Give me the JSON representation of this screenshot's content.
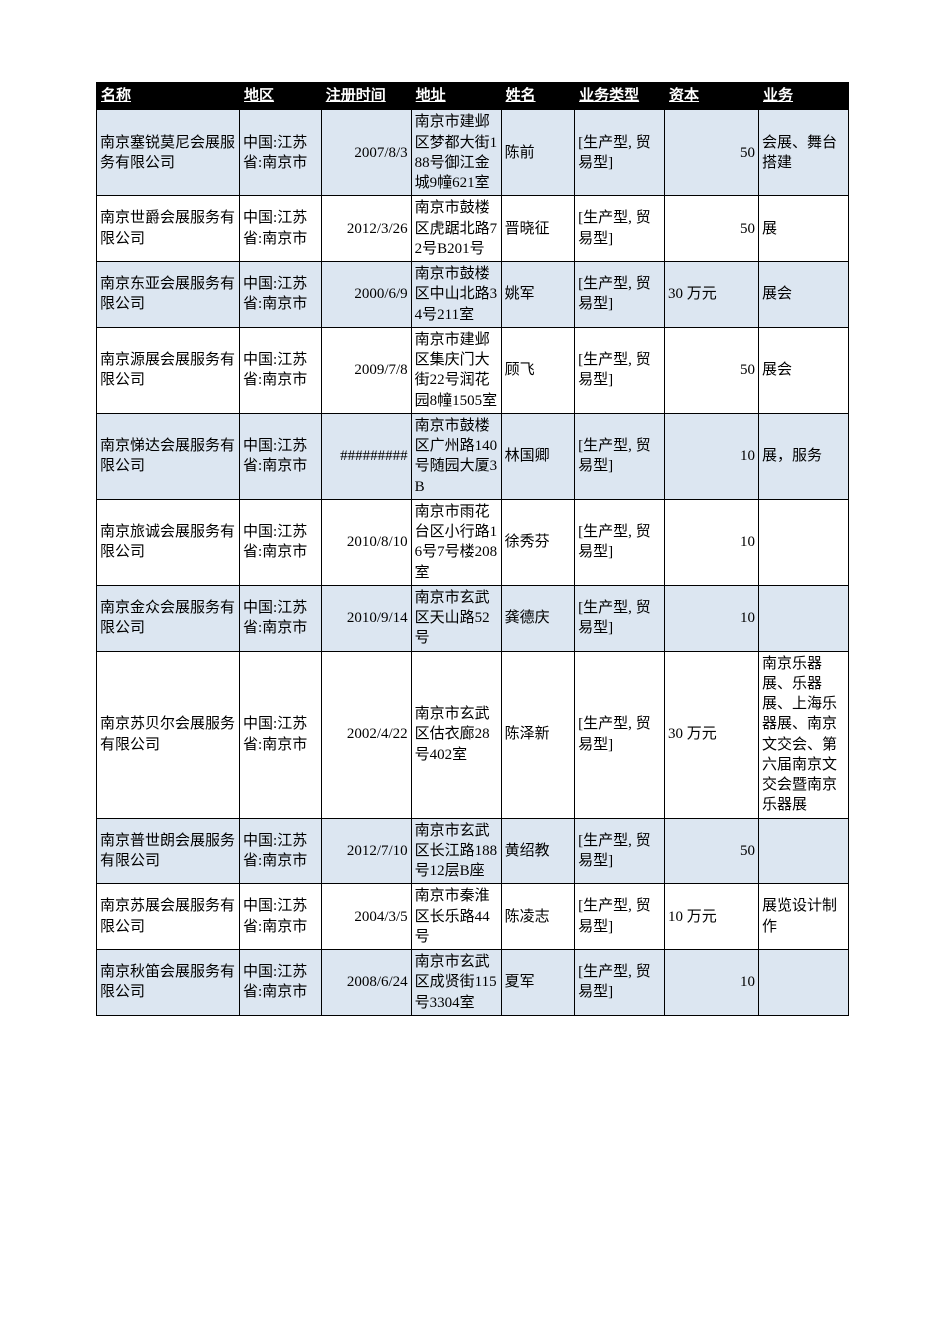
{
  "table": {
    "header_bg": "#000000",
    "header_fg": "#ffffff",
    "row_odd_bg": "#dce6f1",
    "row_even_bg": "#ffffff",
    "border_color": "#000000",
    "columns": [
      {
        "key": "name",
        "label": "名称"
      },
      {
        "key": "region",
        "label": "地区"
      },
      {
        "key": "date",
        "label": "注册时间"
      },
      {
        "key": "addr",
        "label": "地址"
      },
      {
        "key": "person",
        "label": "姓名"
      },
      {
        "key": "biztype",
        "label": "业务类型"
      },
      {
        "key": "capital",
        "label": "资本"
      },
      {
        "key": "biz",
        "label": "业务"
      }
    ],
    "rows": [
      {
        "name": "南京塞锐莫尼会展服务有限公司",
        "region": "中国:江苏省:南京市",
        "date": "2007/8/3",
        "addr": "南京市建邺区梦都大街188号御江金城9幢621室",
        "person": "陈前",
        "biztype": "[生产型, 贸易型]",
        "capital": "50",
        "capital_align": "right",
        "biz": "会展、舞台搭建"
      },
      {
        "name": "南京世爵会展服务有限公司",
        "region": "中国:江苏省:南京市",
        "date": "2012/3/26",
        "addr": "南京市鼓楼区虎踞北路72号B201号",
        "person": "晋晓征",
        "biztype": "[生产型, 贸易型]",
        "capital": "50",
        "capital_align": "right",
        "biz": "展"
      },
      {
        "name": "南京东亚会展服务有限公司",
        "region": "中国:江苏省:南京市",
        "date": "2000/6/9",
        "addr": "南京市鼓楼区中山北路34号211室",
        "person": "姚军",
        "biztype": "[生产型, 贸易型]",
        "capital": "30 万元",
        "capital_align": "left",
        "biz": "展会"
      },
      {
        "name": "南京源展会展服务有限公司",
        "region": "中国:江苏省:南京市",
        "date": "2009/7/8",
        "addr": "南京市建邺区集庆门大街22号润花园8幢1505室",
        "person": "顾飞",
        "biztype": "[生产型, 贸易型]",
        "capital": "50",
        "capital_align": "right",
        "biz": "展会"
      },
      {
        "name": "南京悌达会展服务有限公司",
        "region": "中国:江苏省:南京市",
        "date": "#########",
        "addr": "南京市鼓楼区广州路140号随园大厦3B",
        "person": "林国卿",
        "biztype": "[生产型, 贸易型]",
        "capital": "10",
        "capital_align": "right",
        "biz": "展，服务"
      },
      {
        "name": "南京旅诚会展服务有限公司",
        "region": "中国:江苏省:南京市",
        "date": "2010/8/10",
        "addr": "南京市雨花台区小行路16号7号楼208室",
        "person": "徐秀芬",
        "biztype": "[生产型, 贸易型]",
        "capital": "10",
        "capital_align": "right",
        "biz": ""
      },
      {
        "name": "南京金众会展服务有限公司",
        "region": "中国:江苏省:南京市",
        "date": "2010/9/14",
        "addr": "南京市玄武区天山路52号",
        "person": "龚德庆",
        "biztype": "[生产型, 贸易型]",
        "capital": "10",
        "capital_align": "right",
        "biz": ""
      },
      {
        "name": "南京苏贝尔会展服务有限公司",
        "region": "中国:江苏省:南京市",
        "date": "2002/4/22",
        "addr": "南京市玄武区估衣廊28号402室",
        "person": "陈泽新",
        "biztype": "[生产型, 贸易型]",
        "capital": "30 万元",
        "capital_align": "left",
        "biz": "南京乐器展、乐器展、上海乐器展、南京文交会、第六届南京文交会暨南京乐器展"
      },
      {
        "name": "南京普世朗会展服务有限公司",
        "region": "中国:江苏省:南京市",
        "date": "2012/7/10",
        "addr": "南京市玄武区长江路188号12层B座",
        "person": "黄绍教",
        "biztype": "[生产型, 贸易型]",
        "capital": "50",
        "capital_align": "right",
        "biz": ""
      },
      {
        "name": "南京苏展会展服务有限公司",
        "region": "中国:江苏省:南京市",
        "date": "2004/3/5",
        "addr": "南京市秦淮区长乐路44号",
        "person": "陈凌志",
        "biztype": "[生产型, 贸易型]",
        "capital": "10 万元",
        "capital_align": "left",
        "biz": "展览设计制作"
      },
      {
        "name": "南京秋笛会展服务有限公司",
        "region": "中国:江苏省:南京市",
        "date": "2008/6/24",
        "addr": "南京市玄武区成贤街115号3304室",
        "person": "夏军",
        "biztype": "[生产型, 贸易型]",
        "capital": "10",
        "capital_align": "right",
        "biz": ""
      }
    ]
  }
}
